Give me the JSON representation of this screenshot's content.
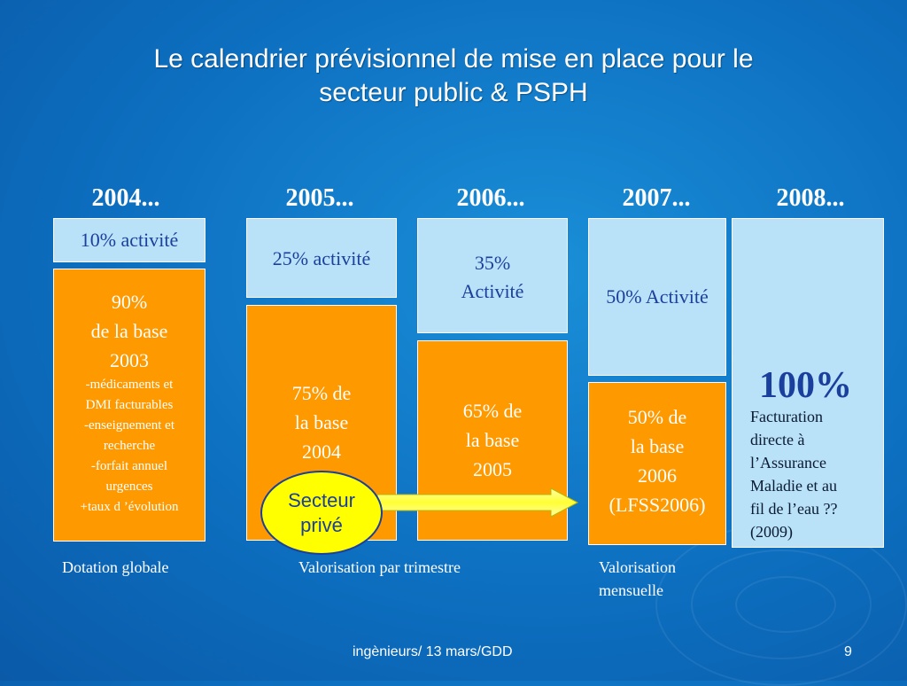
{
  "slide": {
    "title_line1": "Le calendrier prévisionnel de mise en place pour le",
    "title_line2": "secteur public & PSPH"
  },
  "years": [
    "2004...",
    "2005...",
    "2006...",
    "2007...",
    "2008..."
  ],
  "col2004": {
    "activity": "10% activité",
    "base_l1": "90%",
    "base_l2": "de la base",
    "base_l3": "2003",
    "details": [
      "-médicaments et",
      "DMI facturables",
      "-enseignement et",
      "recherche",
      "-forfait annuel",
      "urgences",
      "+taux d ’évolution"
    ]
  },
  "col2005": {
    "activity": "25% activité",
    "base_l1": "75% de",
    "base_l2": "la base",
    "base_l3": "2004"
  },
  "col2006": {
    "activity_l1": "35%",
    "activity_l2": "Activité",
    "base_l1": "65% de",
    "base_l2": "la base",
    "base_l3": "2005"
  },
  "col2007": {
    "activity": "50% Activité",
    "base_l1": "50% de",
    "base_l2": "la base",
    "base_l3": "2006",
    "base_l4": "(LFSS2006)"
  },
  "col2008": {
    "big": "100%",
    "fact_lines": [
      "Facturation",
      "directe à",
      "l’Assurance",
      "Maladie et au",
      "fil de l’eau  ??",
      "(2009)"
    ]
  },
  "callout": {
    "l1": "Secteur",
    "l2": "privé"
  },
  "captions": {
    "dotation": "Dotation globale",
    "trimestre": "Valorisation par trimestre",
    "mensuelle_l1": "Valorisation",
    "mensuelle_l2": "mensuelle"
  },
  "footer": {
    "text": "ingènieurs/ 13 mars/GDD",
    "page": "9"
  },
  "colors": {
    "background": "#0d6fc0",
    "light_box": "#b9e2f8",
    "orange_box": "#ff9900",
    "callout": "#ffff00",
    "text_blue": "#1b3f9c"
  }
}
